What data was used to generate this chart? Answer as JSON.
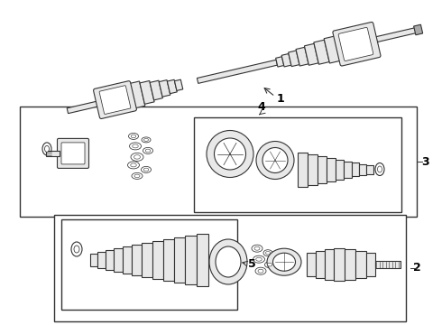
{
  "background_color": "#ffffff",
  "border_color": "#000000",
  "text_color": "#000000",
  "figsize": [
    4.9,
    3.6
  ],
  "dpi": 100,
  "line_color": "#333333",
  "fill_light": "#e8e8e8",
  "fill_med": "#cccccc",
  "fill_dark": "#aaaaaa"
}
